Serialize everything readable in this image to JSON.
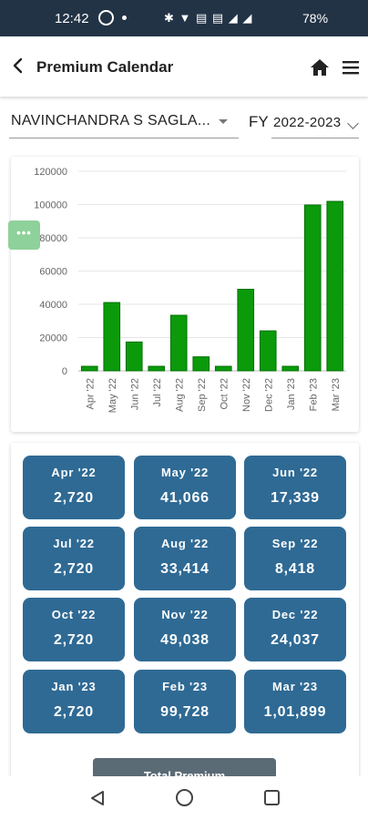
{
  "status_bar": {
    "time": "12:42",
    "system_icons_text": "✱ ▼ ▤ ▤ ◢ ◢",
    "battery": "78%"
  },
  "app_bar": {
    "title": "Premium Calendar",
    "icons": [
      "back-arrow-icon",
      "home-icon",
      "menu-icon"
    ]
  },
  "selectors": {
    "client_value": "NAVINCHANDRA S SAGLA...",
    "fy_label": "FY",
    "fy_value": "2022-2023"
  },
  "more_button_label": "•••",
  "chart_data": {
    "type": "bar",
    "categories": [
      "Apr '22",
      "May '22",
      "Jun '22",
      "Jul '22",
      "Aug '22",
      "Sep '22",
      "Oct '22",
      "Nov '22",
      "Dec '22",
      "Jan '23",
      "Feb '23",
      "Mar '23"
    ],
    "values": [
      2720,
      41066,
      17339,
      2720,
      33414,
      8418,
      2720,
      49038,
      24037,
      2720,
      99728,
      101899
    ],
    "ylim": [
      0,
      120000
    ],
    "yticks": [
      0,
      20000,
      40000,
      60000,
      80000,
      100000,
      120000
    ],
    "ytick_labels": [
      "0",
      "20000",
      "40000",
      "60000",
      "80000",
      "100000",
      "120000"
    ],
    "grid": true,
    "bar_color": "#0a9a0a",
    "bar_border_color": "#057005",
    "title": "",
    "xlabel": "",
    "ylabel": ""
  },
  "months": [
    {
      "label": "Apr '22",
      "value": "2,720"
    },
    {
      "label": "May '22",
      "value": "41,066"
    },
    {
      "label": "Jun '22",
      "value": "17,339"
    },
    {
      "label": "Jul '22",
      "value": "2,720"
    },
    {
      "label": "Aug '22",
      "value": "33,414"
    },
    {
      "label": "Sep '22",
      "value": "8,418"
    },
    {
      "label": "Oct '22",
      "value": "2,720"
    },
    {
      "label": "Nov '22",
      "value": "49,038"
    },
    {
      "label": "Dec '22",
      "value": "24,037"
    },
    {
      "label": "Jan '23",
      "value": "2,720"
    },
    {
      "label": "Feb '23",
      "value": "99,728"
    },
    {
      "label": "Mar '23",
      "value": "1,01,899"
    }
  ],
  "total_button_label": "Total Premium",
  "colors": {
    "status_bar": "#233346",
    "tile": "#2f6a94",
    "bar": "#0a9a0a",
    "more_button": "#8fd19a"
  }
}
